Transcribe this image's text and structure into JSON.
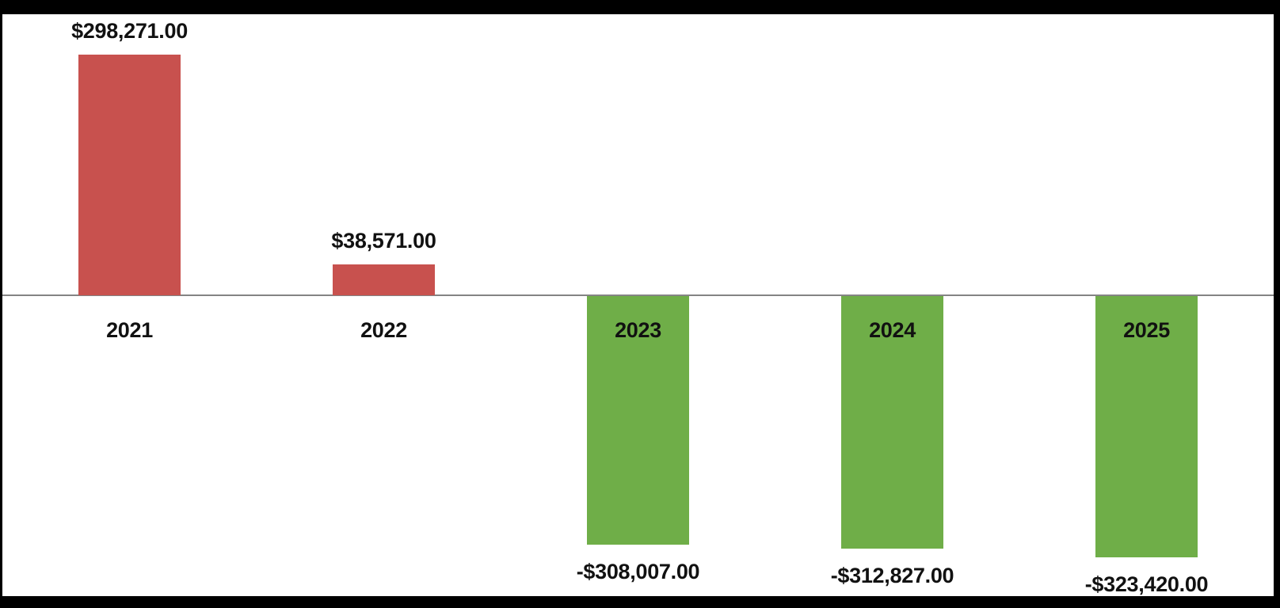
{
  "chart_data": {
    "type": "bar",
    "title": "",
    "xlabel": "",
    "ylabel": "",
    "categories": [
      "2021",
      "2022",
      "2023",
      "2024",
      "2025"
    ],
    "values": [
      298271,
      38571,
      -308007,
      -312827,
      -323420
    ],
    "value_labels": [
      "$298,271.00",
      "$38,571.00",
      "-$308,007.00",
      "-$312,827.00",
      "-$323,420.00"
    ],
    "bar_colors": [
      "#C8514E",
      "#C8514E",
      "#6FAE48",
      "#6FAE48",
      "#6FAE48"
    ],
    "ylim": [
      -340000,
      310000
    ],
    "grid": false,
    "legend": "none",
    "value_label_position": "outside-end",
    "category_label_position": "below-axis"
  },
  "colors": {
    "positive_bar": "#C8514E",
    "negative_bar": "#6FAE48",
    "axis_line": "#848484",
    "label_text": "#111111",
    "frame_background": "#000000",
    "plot_background": "#ffffff"
  }
}
